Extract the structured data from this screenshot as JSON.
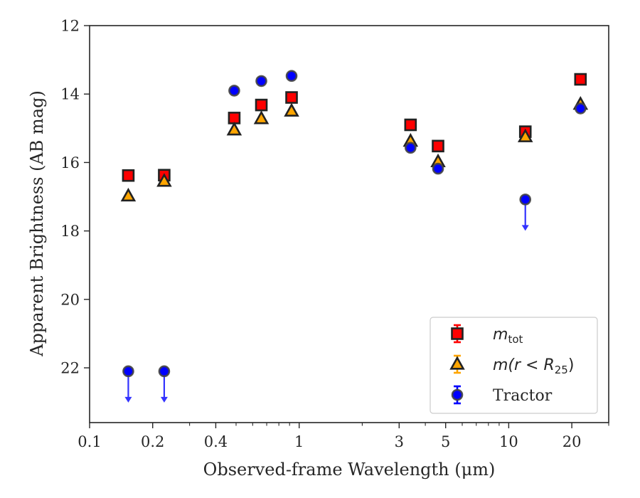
{
  "chart_data": {
    "type": "scatter",
    "title": "",
    "xlabel": "Observed-frame Wavelength (μm)",
    "ylabel": "Apparent Brightness (AB mag)",
    "xscale": "log",
    "xlim": [
      0.1,
      30
    ],
    "ylim": [
      23.6,
      12
    ],
    "y_inverted": true,
    "x_ticks": [
      0.1,
      0.2,
      0.4,
      1,
      3,
      5,
      10,
      20
    ],
    "x_tick_labels": [
      "0.1",
      "0.2",
      "0.4",
      "1",
      "3",
      "5",
      "10",
      "20"
    ],
    "y_ticks": [
      12,
      14,
      16,
      18,
      20,
      22
    ],
    "y_tick_labels": [
      "12",
      "14",
      "16",
      "18",
      "20",
      "22"
    ],
    "grid": false,
    "legend_position": "lower-right",
    "series": [
      {
        "name": "m_tot",
        "label_main": "m",
        "label_sub": "tot",
        "marker": "square",
        "fill": "#ff0000",
        "edge": "#222222",
        "errcolor": "#ff0000",
        "points": [
          {
            "x": 0.153,
            "y": 16.38
          },
          {
            "x": 0.227,
            "y": 16.37
          },
          {
            "x": 0.49,
            "y": 14.7
          },
          {
            "x": 0.66,
            "y": 14.32
          },
          {
            "x": 0.92,
            "y": 14.1
          },
          {
            "x": 3.4,
            "y": 14.9
          },
          {
            "x": 4.6,
            "y": 15.52
          },
          {
            "x": 12.0,
            "y": 15.1
          },
          {
            "x": 22.0,
            "y": 13.57
          }
        ]
      },
      {
        "name": "m(r < R_25)",
        "label_main": "m(r < R",
        "label_sub": "25",
        "label_tail": ")",
        "marker": "triangle",
        "fill": "#ffa500",
        "edge": "#222222",
        "errcolor": "#ffa500",
        "points": [
          {
            "x": 0.153,
            "y": 16.98
          },
          {
            "x": 0.227,
            "y": 16.55
          },
          {
            "x": 0.49,
            "y": 15.05
          },
          {
            "x": 0.66,
            "y": 14.72
          },
          {
            "x": 0.92,
            "y": 14.5
          },
          {
            "x": 3.4,
            "y": 15.38
          },
          {
            "x": 4.6,
            "y": 15.98
          },
          {
            "x": 12.0,
            "y": 15.25
          },
          {
            "x": 22.0,
            "y": 14.3
          }
        ]
      },
      {
        "name": "Tractor",
        "label_main": "Tractor",
        "marker": "circle",
        "fill": "#0000ff",
        "edge": "#444444",
        "errcolor": "#0000ff",
        "points": [
          {
            "x": 0.153,
            "y": 22.1,
            "upper_limit": true
          },
          {
            "x": 0.227,
            "y": 22.1,
            "upper_limit": true
          },
          {
            "x": 0.49,
            "y": 13.9
          },
          {
            "x": 0.66,
            "y": 13.62
          },
          {
            "x": 0.92,
            "y": 13.47
          },
          {
            "x": 3.4,
            "y": 15.57
          },
          {
            "x": 4.6,
            "y": 16.18
          },
          {
            "x": 12.0,
            "y": 17.08,
            "upper_limit": true
          },
          {
            "x": 22.0,
            "y": 14.42
          }
        ]
      }
    ]
  }
}
